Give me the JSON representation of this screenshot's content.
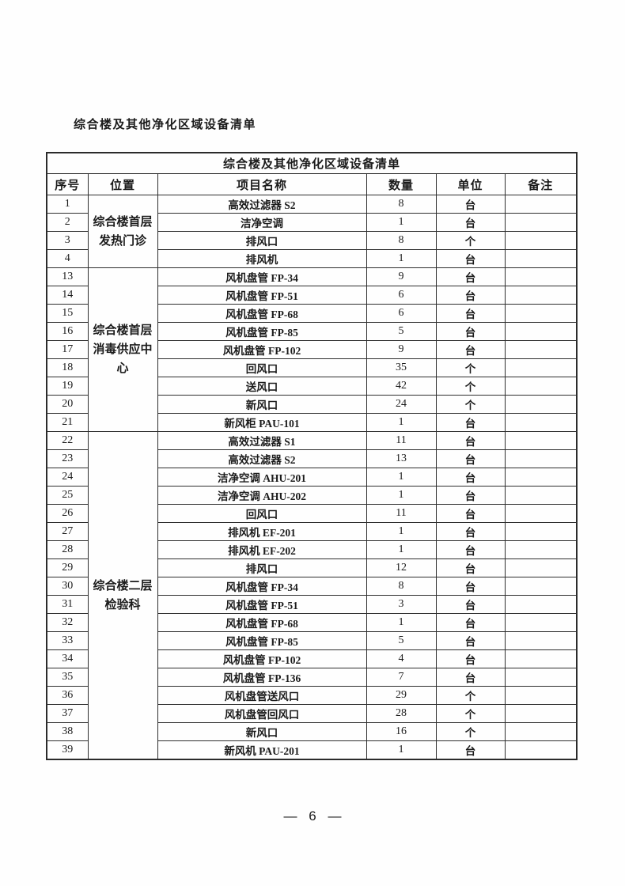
{
  "page": {
    "heading": "综合楼及其他净化区域设备清单",
    "page_number": "— 6 —"
  },
  "table": {
    "title": "综合楼及其他净化区域设备清单",
    "columns": [
      "序号",
      "位置",
      "项目名称",
      "数量",
      "单位",
      "备注"
    ],
    "groups": [
      {
        "location": "综合楼首层发热门诊",
        "rows": [
          {
            "no": "1",
            "item": "高效过滤器 S2",
            "qty": "8",
            "unit": "台",
            "note": ""
          },
          {
            "no": "2",
            "item": "洁净空调",
            "qty": "1",
            "unit": "台",
            "note": ""
          },
          {
            "no": "3",
            "item": "排风口",
            "qty": "8",
            "unit": "个",
            "note": ""
          },
          {
            "no": "4",
            "item": "排风机",
            "qty": "1",
            "unit": "台",
            "note": ""
          }
        ]
      },
      {
        "location": "综合楼首层消毒供应中心",
        "rows": [
          {
            "no": "13",
            "item": "风机盘管 FP-34",
            "qty": "9",
            "unit": "台",
            "note": ""
          },
          {
            "no": "14",
            "item": "风机盘管 FP-51",
            "qty": "6",
            "unit": "台",
            "note": ""
          },
          {
            "no": "15",
            "item": "风机盘管 FP-68",
            "qty": "6",
            "unit": "台",
            "note": ""
          },
          {
            "no": "16",
            "item": "风机盘管 FP-85",
            "qty": "5",
            "unit": "台",
            "note": ""
          },
          {
            "no": "17",
            "item": "风机盘管 FP-102",
            "qty": "9",
            "unit": "台",
            "note": ""
          },
          {
            "no": "18",
            "item": "回风口",
            "qty": "35",
            "unit": "个",
            "note": ""
          },
          {
            "no": "19",
            "item": "送风口",
            "qty": "42",
            "unit": "个",
            "note": ""
          },
          {
            "no": "20",
            "item": "新风口",
            "qty": "24",
            "unit": "个",
            "note": ""
          },
          {
            "no": "21",
            "item": "新风柜 PAU-101",
            "qty": "1",
            "unit": "台",
            "note": ""
          }
        ]
      },
      {
        "location": "综合楼二层检验科",
        "rows": [
          {
            "no": "22",
            "item": "高效过滤器 S1",
            "qty": "11",
            "unit": "台",
            "note": ""
          },
          {
            "no": "23",
            "item": "高效过滤器 S2",
            "qty": "13",
            "unit": "台",
            "note": ""
          },
          {
            "no": "24",
            "item": "洁净空调 AHU-201",
            "qty": "1",
            "unit": "台",
            "note": ""
          },
          {
            "no": "25",
            "item": "洁净空调 AHU-202",
            "qty": "1",
            "unit": "台",
            "note": ""
          },
          {
            "no": "26",
            "item": "回风口",
            "qty": "11",
            "unit": "台",
            "note": ""
          },
          {
            "no": "27",
            "item": "排风机 EF-201",
            "qty": "1",
            "unit": "台",
            "note": ""
          },
          {
            "no": "28",
            "item": "排风机 EF-202",
            "qty": "1",
            "unit": "台",
            "note": ""
          },
          {
            "no": "29",
            "item": "排风口",
            "qty": "12",
            "unit": "台",
            "note": ""
          },
          {
            "no": "30",
            "item": "风机盘管 FP-34",
            "qty": "8",
            "unit": "台",
            "note": ""
          },
          {
            "no": "31",
            "item": "风机盘管 FP-51",
            "qty": "3",
            "unit": "台",
            "note": ""
          },
          {
            "no": "32",
            "item": "风机盘管 FP-68",
            "qty": "1",
            "unit": "台",
            "note": ""
          },
          {
            "no": "33",
            "item": "风机盘管 FP-85",
            "qty": "5",
            "unit": "台",
            "note": ""
          },
          {
            "no": "34",
            "item": "风机盘管 FP-102",
            "qty": "4",
            "unit": "台",
            "note": ""
          },
          {
            "no": "35",
            "item": "风机盘管 FP-136",
            "qty": "7",
            "unit": "台",
            "note": ""
          },
          {
            "no": "36",
            "item": "风机盘管送风口",
            "qty": "29",
            "unit": "个",
            "note": ""
          },
          {
            "no": "37",
            "item": "风机盘管回风口",
            "qty": "28",
            "unit": "个",
            "note": ""
          },
          {
            "no": "38",
            "item": "新风口",
            "qty": "16",
            "unit": "个",
            "note": ""
          },
          {
            "no": "39",
            "item": "新风机 PAU-201",
            "qty": "1",
            "unit": "台",
            "note": ""
          }
        ]
      }
    ]
  }
}
